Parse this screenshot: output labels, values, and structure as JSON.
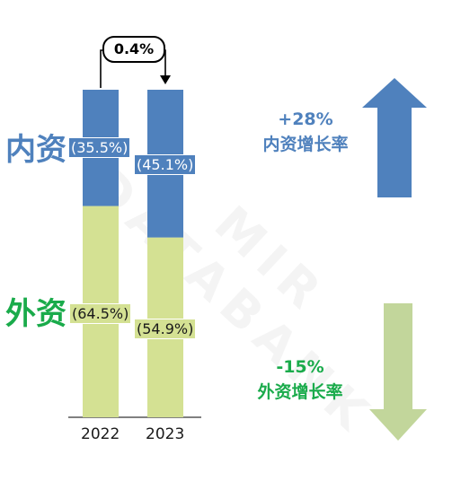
{
  "chart_data": {
    "type": "bar",
    "stacked": true,
    "categories": [
      "2022",
      "2023"
    ],
    "series": [
      {
        "name": "外资",
        "values": [
          64.5,
          54.9
        ],
        "labels": [
          "(64.5%)",
          "(54.9%)"
        ],
        "color": "#d4e193"
      },
      {
        "name": "内资",
        "values": [
          35.5,
          45.1
        ],
        "labels": [
          "(35.5%)",
          "(45.1%)"
        ],
        "color": "#4f81bd"
      }
    ],
    "ylim": [
      0,
      100
    ],
    "annotation": "0.4%"
  },
  "labels": {
    "domestic": "内资",
    "foreign": "外资"
  },
  "domestic_rate": {
    "value": "+28%",
    "label": "内资增长率",
    "color": "#4f81bd",
    "direction": "up"
  },
  "foreign_rate": {
    "value": "-15%",
    "label": "外资增长率",
    "color": "#1aab4b",
    "direction": "down"
  },
  "colors": {
    "domestic": "#4f81bd",
    "foreign_bar": "#d4e193",
    "foreign_text": "#1aab4b",
    "arrow_down": "#c2d69b"
  },
  "watermark": "MIR DATABANK"
}
